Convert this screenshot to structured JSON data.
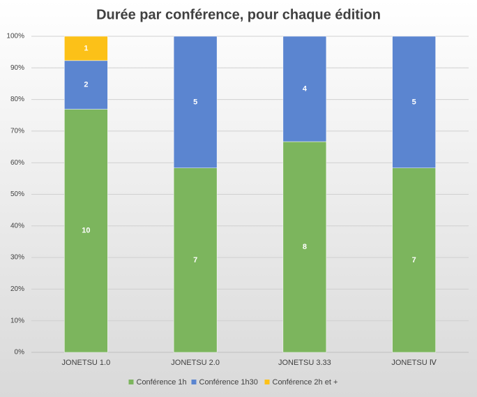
{
  "chart_data": {
    "type": "bar",
    "stacking": "percent",
    "title": "Durée par conférence, pour chaque édition",
    "categories": [
      "JONETSU 1.0",
      "JONETSU 2.0",
      "JONETSU 3.33",
      "JONETSU Ⅳ"
    ],
    "series": [
      {
        "name": "Conférence 1h",
        "color": "#7cb55d",
        "values": [
          10,
          7,
          8,
          7
        ]
      },
      {
        "name": "Conférence 1h30",
        "color": "#5b85d0",
        "values": [
          2,
          5,
          4,
          5
        ]
      },
      {
        "name": "Conférence 2h et +",
        "color": "#fcc118",
        "values": [
          1,
          null,
          null,
          null
        ]
      }
    ],
    "ylim": [
      0,
      100
    ],
    "yticks": [
      {
        "value": 0,
        "label": "0%"
      },
      {
        "value": 10,
        "label": "10%"
      },
      {
        "value": 20,
        "label": "20%"
      },
      {
        "value": 30,
        "label": "30%"
      },
      {
        "value": 40,
        "label": "40%"
      },
      {
        "value": 50,
        "label": "50%"
      },
      {
        "value": 60,
        "label": "60%"
      },
      {
        "value": 70,
        "label": "70%"
      },
      {
        "value": 80,
        "label": "80%"
      },
      {
        "value": 90,
        "label": "90%"
      },
      {
        "value": 100,
        "label": "100%"
      }
    ],
    "grid": true,
    "legend": "bottom"
  }
}
